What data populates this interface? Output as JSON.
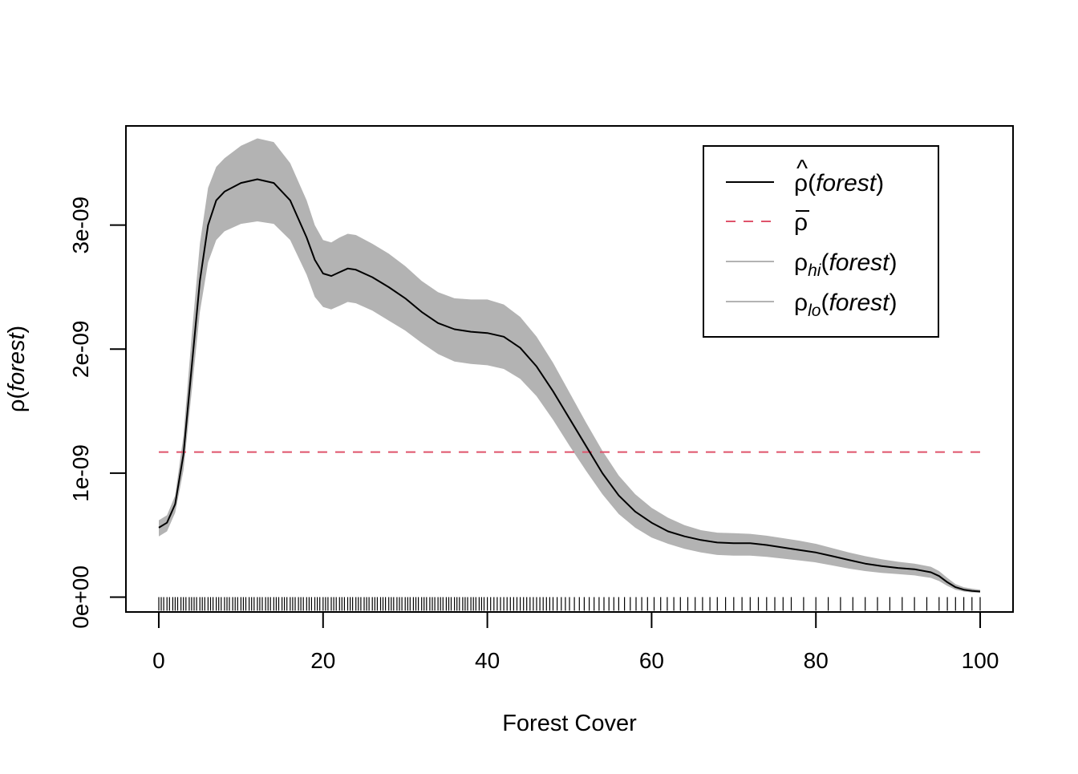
{
  "chart_data": {
    "type": "line",
    "title": "",
    "xlabel": "Forest Cover",
    "ylabel": "ρ(forest)",
    "xlim": [
      -4,
      104
    ],
    "ylim": [
      -1.2e-10,
      3.8e-09
    ],
    "x_ticks": [
      0,
      20,
      40,
      60,
      80,
      100
    ],
    "x_tick_labels": [
      "0",
      "20",
      "40",
      "60",
      "80",
      "100"
    ],
    "y_ticks": [
      0,
      1e-09,
      2e-09,
      3e-09
    ],
    "y_tick_labels": [
      "0e+00",
      "1e-09",
      "2e-09",
      "3e-09"
    ],
    "legend": {
      "position": "top-right",
      "entries": [
        {
          "label": "ρ̂(forest)",
          "style": "solid",
          "color": "#000000"
        },
        {
          "label": "ρ̄",
          "style": "dashed",
          "color": "#DF536B"
        },
        {
          "label": "ρhi(forest)",
          "style": "solid",
          "color": "#B3B3B3"
        },
        {
          "label": "ρlo(forest)",
          "style": "solid",
          "color": "#B3B3B3"
        }
      ]
    },
    "reference_line": {
      "name": "ρ̄",
      "y": 1.17e-09,
      "color": "#DF536B",
      "style": "dashed"
    },
    "envelope_color": "#B3B3B3",
    "series": [
      {
        "name": "ρ̂(forest)",
        "color": "#000000",
        "x": [
          0,
          1,
          2,
          3,
          4,
          5,
          6,
          7,
          8,
          10,
          12,
          14,
          16,
          18,
          19,
          20,
          21,
          22,
          23,
          24,
          26,
          28,
          30,
          32,
          34,
          36,
          38,
          40,
          42,
          44,
          46,
          48,
          50,
          52,
          54,
          56,
          58,
          60,
          62,
          64,
          66,
          68,
          70,
          72,
          74,
          76,
          78,
          80,
          82,
          84,
          86,
          88,
          90,
          92,
          94,
          95,
          96,
          97,
          98,
          99,
          100
        ],
        "y": [
          5.6e-10,
          6e-10,
          7.5e-10,
          1.15e-09,
          1.85e-09,
          2.55e-09,
          3e-09,
          3.2e-09,
          3.27e-09,
          3.34e-09,
          3.37e-09,
          3.34e-09,
          3.2e-09,
          2.9e-09,
          2.72e-09,
          2.61e-09,
          2.59e-09,
          2.62e-09,
          2.65e-09,
          2.64e-09,
          2.58e-09,
          2.5e-09,
          2.41e-09,
          2.3e-09,
          2.21e-09,
          2.16e-09,
          2.14e-09,
          2.13e-09,
          2.1e-09,
          2.01e-09,
          1.86e-09,
          1.66e-09,
          1.44e-09,
          1.22e-09,
          1e-09,
          8.2e-10,
          6.9e-10,
          6e-10,
          5.3e-10,
          4.9e-10,
          4.6e-10,
          4.4e-10,
          4.35e-10,
          4.35e-10,
          4.2e-10,
          4e-10,
          3.8e-10,
          3.6e-10,
          3.3e-10,
          3e-10,
          2.7e-10,
          2.5e-10,
          2.35e-10,
          2.25e-10,
          2e-10,
          1.7e-10,
          1.2e-10,
          8e-11,
          6e-11,
          5e-11,
          4.5e-11
        ]
      },
      {
        "name": "ρhi(forest)",
        "color": "#B3B3B3",
        "x": [
          0,
          1,
          2,
          3,
          4,
          5,
          6,
          7,
          8,
          10,
          12,
          14,
          16,
          18,
          19,
          20,
          21,
          22,
          23,
          24,
          26,
          28,
          30,
          32,
          34,
          36,
          38,
          40,
          42,
          44,
          46,
          48,
          50,
          52,
          54,
          56,
          58,
          60,
          62,
          64,
          66,
          68,
          70,
          72,
          74,
          76,
          78,
          80,
          82,
          84,
          86,
          88,
          90,
          92,
          94,
          95,
          96,
          97,
          98,
          99,
          100
        ],
        "y": [
          6.2e-10,
          6.6e-10,
          8.2e-10,
          1.3e-09,
          2.1e-09,
          2.85e-09,
          3.3e-09,
          3.47e-09,
          3.54e-09,
          3.64e-09,
          3.7e-09,
          3.67e-09,
          3.5e-09,
          3.2e-09,
          3e-09,
          2.88e-09,
          2.86e-09,
          2.9e-09,
          2.93e-09,
          2.92e-09,
          2.85e-09,
          2.77e-09,
          2.67e-09,
          2.55e-09,
          2.46e-09,
          2.41e-09,
          2.4e-09,
          2.4e-09,
          2.36e-09,
          2.26e-09,
          2.1e-09,
          1.89e-09,
          1.65e-09,
          1.41e-09,
          1.18e-09,
          9.8e-10,
          8.3e-10,
          7.2e-10,
          6.4e-10,
          5.8e-10,
          5.4e-10,
          5.2e-10,
          5.15e-10,
          5.1e-10,
          4.95e-10,
          4.75e-10,
          4.55e-10,
          4.3e-10,
          3.95e-10,
          3.6e-10,
          3.3e-10,
          3.05e-10,
          2.85e-10,
          2.7e-10,
          2.45e-10,
          2.1e-10,
          1.55e-10,
          1.05e-10,
          8e-11,
          6.8e-11,
          6e-11
        ]
      },
      {
        "name": "ρlo(forest)",
        "color": "#B3B3B3",
        "x": [
          0,
          1,
          2,
          3,
          4,
          5,
          6,
          7,
          8,
          10,
          12,
          14,
          16,
          18,
          19,
          20,
          21,
          22,
          23,
          24,
          26,
          28,
          30,
          32,
          34,
          36,
          38,
          40,
          42,
          44,
          46,
          48,
          50,
          52,
          54,
          56,
          58,
          60,
          62,
          64,
          66,
          68,
          70,
          72,
          74,
          76,
          78,
          80,
          82,
          84,
          86,
          88,
          90,
          92,
          94,
          95,
          96,
          97,
          98,
          99,
          100
        ],
        "y": [
          4.9e-10,
          5.3e-10,
          6.8e-10,
          1.02e-09,
          1.65e-09,
          2.3e-09,
          2.7e-09,
          2.88e-09,
          2.95e-09,
          3.01e-09,
          3.03e-09,
          3.01e-09,
          2.88e-09,
          2.6e-09,
          2.42e-09,
          2.34e-09,
          2.32e-09,
          2.35e-09,
          2.38e-09,
          2.37e-09,
          2.31e-09,
          2.23e-09,
          2.15e-09,
          2.05e-09,
          1.96e-09,
          1.9e-09,
          1.88e-09,
          1.87e-09,
          1.84e-09,
          1.76e-09,
          1.62e-09,
          1.43e-09,
          1.22e-09,
          1.02e-09,
          8.3e-10,
          6.7e-10,
          5.6e-10,
          4.8e-10,
          4.3e-10,
          3.9e-10,
          3.6e-10,
          3.4e-10,
          3.35e-10,
          3.35e-10,
          3.25e-10,
          3.1e-10,
          2.95e-10,
          2.8e-10,
          2.55e-10,
          2.3e-10,
          2.1e-10,
          1.95e-10,
          1.85e-10,
          1.75e-10,
          1.55e-10,
          1.3e-10,
          9e-11,
          6e-11,
          4.5e-11,
          3.8e-11,
          3.5e-11
        ]
      }
    ],
    "rug_x": [
      0.0,
      0.3,
      0.6,
      1.0,
      1.3,
      1.7,
      2.0,
      2.3,
      2.7,
      3.0,
      3.3,
      3.7,
      4.0,
      4.3,
      4.6,
      5.0,
      5.3,
      5.6,
      6.0,
      6.3,
      6.6,
      7.0,
      7.3,
      7.6,
      8.0,
      8.3,
      8.6,
      9.0,
      9.3,
      9.6,
      10.0,
      10.3,
      10.6,
      11.0,
      11.3,
      11.6,
      12.0,
      12.3,
      12.6,
      13.0,
      13.3,
      13.6,
      14.0,
      14.3,
      14.6,
      15.0,
      15.3,
      15.6,
      16.0,
      16.3,
      16.6,
      17.0,
      17.3,
      17.6,
      18.0,
      18.3,
      18.6,
      19.0,
      19.3,
      19.6,
      20.0,
      20.3,
      20.6,
      21.0,
      21.3,
      21.6,
      22.0,
      22.3,
      22.6,
      23.0,
      23.3,
      23.6,
      24.0,
      24.3,
      24.6,
      25.0,
      25.3,
      25.6,
      26.0,
      26.3,
      26.6,
      27.0,
      27.3,
      27.6,
      28.0,
      28.3,
      28.6,
      29.0,
      29.3,
      29.6,
      30.0,
      30.3,
      30.6,
      31.0,
      31.3,
      31.6,
      32.0,
      32.3,
      32.6,
      33.0,
      33.3,
      33.6,
      34.0,
      34.3,
      34.6,
      35.0,
      35.3,
      35.6,
      36.0,
      36.3,
      36.6,
      37.0,
      37.3,
      37.6,
      38.0,
      38.3,
      38.6,
      39.0,
      39.3,
      39.6,
      40.0,
      40.4,
      40.8,
      41.2,
      41.6,
      42.0,
      42.4,
      42.8,
      43.2,
      43.6,
      44.0,
      44.4,
      44.8,
      45.2,
      45.6,
      46.0,
      46.4,
      46.8,
      47.2,
      47.6,
      48.0,
      48.5,
      49.0,
      49.5,
      50.0,
      50.6,
      51.2,
      51.8,
      52.4,
      53.0,
      53.6,
      54.2,
      54.8,
      55.4,
      56.0,
      56.7,
      57.4,
      58.1,
      58.8,
      59.5,
      60.3,
      61.1,
      61.9,
      62.7,
      63.5,
      64.4,
      65.3,
      66.2,
      67.1,
      68.0,
      69.0,
      70.0,
      71.0,
      72.0,
      73.0,
      74.0,
      75.0,
      76.0,
      77.0,
      78.5,
      80.0,
      81.5,
      83.0,
      84.5,
      86.0,
      87.5,
      89.0,
      90.5,
      92.0,
      93.5,
      95.0,
      96.0,
      97.0,
      98.0,
      99.0,
      100.0
    ]
  }
}
